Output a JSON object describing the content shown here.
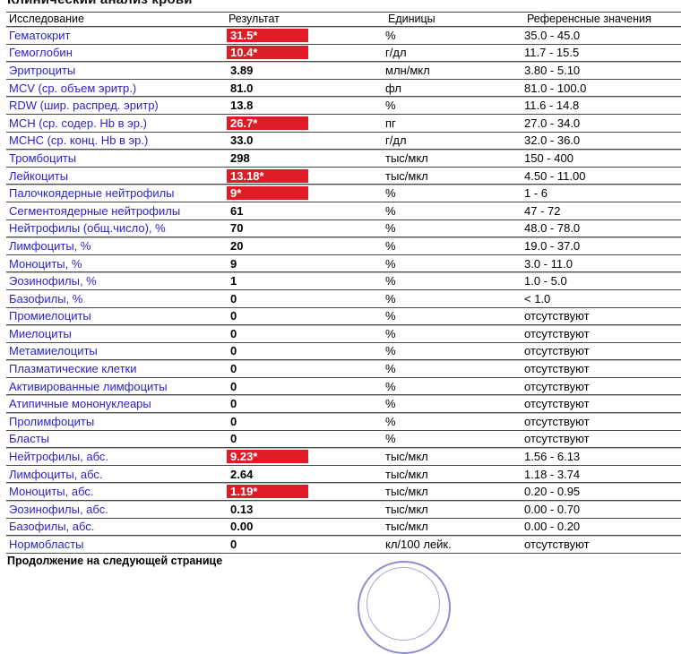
{
  "title": "Клинический анализ крови",
  "colors": {
    "abnormal_highlight": "#df1b26",
    "test_name_blue": "#2a1fd0"
  },
  "table": {
    "headers": [
      "Исследование",
      "Результат",
      "Единицы",
      "Референсные значения"
    ],
    "rows": [
      {
        "name": "Гематокрит",
        "result": "31.5*",
        "flagged": true,
        "units": "%",
        "reference": "35.0 - 45.0"
      },
      {
        "name": "Гемоглобин",
        "result": "10.4*",
        "flagged": true,
        "units": "г/дл",
        "reference": "11.7 - 15.5"
      },
      {
        "name": "Эритроциты",
        "result": "3.89",
        "flagged": false,
        "units": "млн/мкл",
        "reference": "3.80 - 5.10"
      },
      {
        "name": "MCV (ср. объем эритр.)",
        "result": "81.0",
        "flagged": false,
        "units": "фл",
        "reference": "81.0 - 100.0"
      },
      {
        "name": "RDW (шир. распред. эритр)",
        "result": "13.8",
        "flagged": false,
        "units": "%",
        "reference": "11.6 - 14.8"
      },
      {
        "name": "MCH (ср. содер. Hb в эр.)",
        "result": "26.7*",
        "flagged": true,
        "units": "пг",
        "reference": "27.0 - 34.0"
      },
      {
        "name": "MCHC (ср. конц. Hb в эр.)",
        "result": "33.0",
        "flagged": false,
        "units": "г/дл",
        "reference": "32.0 - 36.0"
      },
      {
        "name": "Тромбоциты",
        "result": "298",
        "flagged": false,
        "units": "тыс/мкл",
        "reference": "150 - 400"
      },
      {
        "name": "Лейкоциты",
        "result": "13.18*",
        "flagged": true,
        "units": "тыс/мкл",
        "reference": "4.50 - 11.00"
      },
      {
        "name": "Палочкоядерные нейтрофилы",
        "result": "9*",
        "flagged": true,
        "units": "%",
        "reference": "1 - 6"
      },
      {
        "name": "Сегментоядерные нейтрофилы",
        "result": "61",
        "flagged": false,
        "units": "%",
        "reference": "47 - 72"
      },
      {
        "name": "Нейтрофилы (общ.число), %",
        "result": "70",
        "flagged": false,
        "units": "%",
        "reference": "48.0 - 78.0"
      },
      {
        "name": "Лимфоциты, %",
        "result": "20",
        "flagged": false,
        "units": "%",
        "reference": "19.0 - 37.0"
      },
      {
        "name": "Моноциты, %",
        "result": "9",
        "flagged": false,
        "units": "%",
        "reference": "3.0 - 11.0"
      },
      {
        "name": "Эозинофилы, %",
        "result": "1",
        "flagged": false,
        "units": "%",
        "reference": "1.0 - 5.0"
      },
      {
        "name": "Базофилы, %",
        "result": "0",
        "flagged": false,
        "units": "%",
        "reference": "< 1.0"
      },
      {
        "name": "Промиелоциты",
        "result": "0",
        "flagged": false,
        "units": "%",
        "reference": "отсутствуют"
      },
      {
        "name": "Миелоциты",
        "result": "0",
        "flagged": false,
        "units": "%",
        "reference": "отсутствуют"
      },
      {
        "name": "Метамиелоциты",
        "result": "0",
        "flagged": false,
        "units": "%",
        "reference": "отсутствуют"
      },
      {
        "name": "Плазматические клетки",
        "result": "0",
        "flagged": false,
        "units": "%",
        "reference": "отсутствуют"
      },
      {
        "name": "Активированные лимфоциты",
        "result": "0",
        "flagged": false,
        "units": "%",
        "reference": "отсутствуют"
      },
      {
        "name": "Атипичные мононуклеары",
        "result": "0",
        "flagged": false,
        "units": "%",
        "reference": "отсутствуют"
      },
      {
        "name": "Пролимфоциты",
        "result": "0",
        "flagged": false,
        "units": "%",
        "reference": "отсутствуют"
      },
      {
        "name": "Бласты",
        "result": "0",
        "flagged": false,
        "units": "%",
        "reference": "отсутствуют"
      },
      {
        "name": "Нейтрофилы, абс.",
        "result": "9.23*",
        "flagged": true,
        "units": "тыс/мкл",
        "reference": "1.56 - 6.13"
      },
      {
        "name": "Лимфоциты, абс.",
        "result": "2.64",
        "flagged": false,
        "units": "тыс/мкл",
        "reference": "1.18 - 3.74"
      },
      {
        "name": "Моноциты, абс.",
        "result": "1.19*",
        "flagged": true,
        "units": "тыс/мкл",
        "reference": "0.20 - 0.95"
      },
      {
        "name": "Эозинофилы, абс.",
        "result": "0.13",
        "flagged": false,
        "units": "тыс/мкл",
        "reference": "0.00 - 0.70"
      },
      {
        "name": "Базофилы, абс.",
        "result": "0.00",
        "flagged": false,
        "units": "тыс/мкл",
        "reference": "0.00 - 0.20"
      },
      {
        "name": "Нормобласты",
        "result": "0",
        "flagged": false,
        "units": "кл/100 лейк.",
        "reference": "отсутствуют"
      }
    ]
  },
  "footer": {
    "continuation": "Продолжение на следующей странице"
  }
}
